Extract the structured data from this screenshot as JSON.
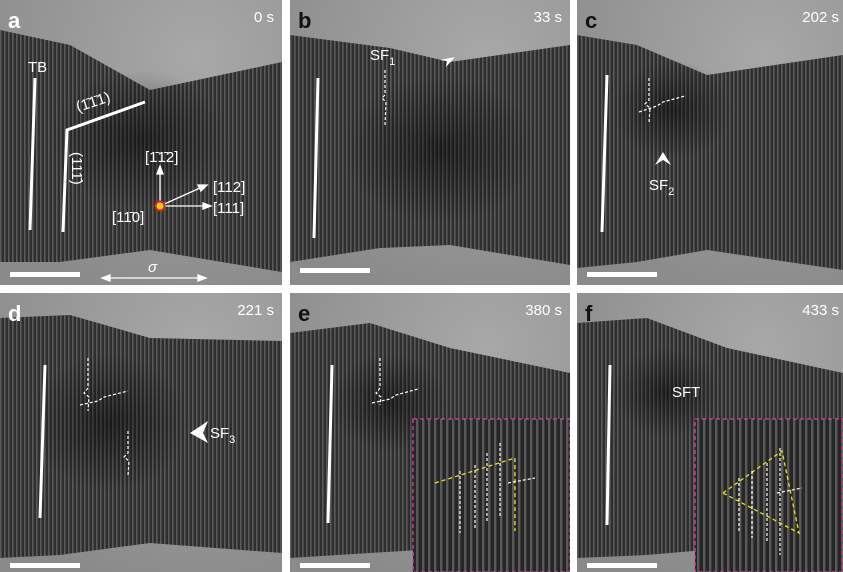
{
  "panels": [
    {
      "letter": "a",
      "time": "0 s",
      "labels": [
        "TB",
        "(1̄1̄1)",
        "(111̄)",
        "[1̄1̄2]",
        "[112]",
        "[111]",
        "[11̄0]",
        "σ"
      ]
    },
    {
      "letter": "b",
      "time": "33 s",
      "labels": [
        {
          "text": "SF",
          "sub": "1"
        }
      ]
    },
    {
      "letter": "c",
      "time": "202 s",
      "labels": [
        {
          "text": "SF",
          "sub": "2"
        }
      ]
    },
    {
      "letter": "d",
      "time": "221 s",
      "labels": [
        {
          "text": "SF",
          "sub": "3"
        }
      ]
    },
    {
      "letter": "e",
      "time": "380 s"
    },
    {
      "letter": "f",
      "time": "433 s",
      "labels": [
        "SFT"
      ]
    }
  ]
}
